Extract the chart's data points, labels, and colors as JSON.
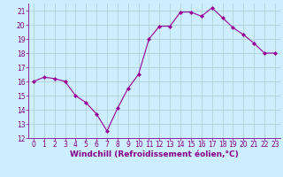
{
  "x": [
    0,
    1,
    2,
    3,
    4,
    5,
    6,
    7,
    8,
    9,
    10,
    11,
    12,
    13,
    14,
    15,
    16,
    17,
    18,
    19,
    20,
    21,
    22,
    23
  ],
  "y": [
    16.0,
    16.3,
    16.2,
    16.0,
    15.0,
    14.5,
    13.7,
    12.5,
    14.1,
    15.5,
    16.5,
    19.0,
    19.9,
    19.9,
    20.9,
    20.9,
    20.6,
    21.2,
    20.5,
    19.8,
    19.3,
    18.7,
    18.0,
    18.0
  ],
  "line_color": "#990099",
  "marker": "D",
  "marker_size": 2.0,
  "xlabel": "Windchill (Refroidissement éolien,°C)",
  "ylim": [
    12,
    21.5
  ],
  "xlim": [
    -0.5,
    23.5
  ],
  "yticks": [
    12,
    13,
    14,
    15,
    16,
    17,
    18,
    19,
    20,
    21
  ],
  "xticks": [
    0,
    1,
    2,
    3,
    4,
    5,
    6,
    7,
    8,
    9,
    10,
    11,
    12,
    13,
    14,
    15,
    16,
    17,
    18,
    19,
    20,
    21,
    22,
    23
  ],
  "bg_color": "#cceeff",
  "grid_color": "#aacccc",
  "line_purple": "#880088",
  "tick_fontsize": 5.5,
  "xlabel_fontsize": 6.5
}
